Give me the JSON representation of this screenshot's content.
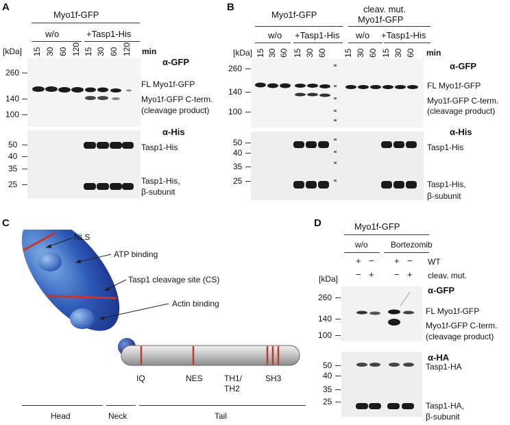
{
  "panels": {
    "A": {
      "label": "A",
      "construct": "Myo1f-GFP",
      "group_wo": "w/o",
      "group_tasp": "+Tasp1-His",
      "kda": "[kDa]",
      "min": "min",
      "times": [
        "15",
        "30",
        "60",
        "120",
        "15",
        "30",
        "60",
        "120"
      ],
      "antibody_top": "α-GFP",
      "antibody_bottom": "α-His",
      "markers_top": [
        "260",
        "140",
        "100"
      ],
      "markers_bottom": [
        "50",
        "40",
        "35",
        "25"
      ],
      "band_fl": "FL Myo1f-GFP",
      "band_cterm": "Myo1f-GFP C-term.",
      "band_cterm_sub": "(cleavage product)",
      "band_tasp": "Tasp1-His",
      "band_beta1": "Tasp1-His,",
      "band_beta2": "β-subunit"
    },
    "B": {
      "label": "B",
      "construct": "Myo1f-GFP",
      "construct2_l1": "cleav. mut.",
      "construct2_l2": "Myo1f-GFP",
      "group_wo": "w/o",
      "group_tasp": "+Tasp1-His",
      "group_wo2": "w/o",
      "group_tasp2": "+Tasp1-His",
      "kda": "[kDa]",
      "min": "min",
      "times": [
        "15",
        "30",
        "60",
        "15",
        "30",
        "60",
        "15",
        "30",
        "60",
        "15",
        "30",
        "60"
      ],
      "antibody_top": "α-GFP",
      "antibody_bottom": "α-His",
      "markers_top": [
        "260",
        "140",
        "100"
      ],
      "markers_bottom": [
        "50",
        "40",
        "35",
        "25"
      ],
      "band_fl": "FL Myo1f-GFP",
      "band_cterm": "Myo1f-GFP C-term.",
      "band_cterm_sub": "(cleavage product)",
      "band_tasp": "Tasp1-His",
      "band_beta1": "Tasp1-His,",
      "band_beta2": "β-subunit"
    },
    "C": {
      "label": "C",
      "callouts": [
        "NLS",
        "ATP  binding",
        "Tasp1 cleavage site (CS)",
        "Actin binding"
      ],
      "tail_sites": [
        "IQ",
        "NES",
        "TH1/",
        "TH2",
        "SH3"
      ],
      "domains": [
        "Head",
        "Neck",
        "Tail"
      ],
      "colors": {
        "head": "#2a4fb0",
        "neck": "#1f3f9a",
        "tail": "#b9b9b9",
        "site": "#c0392b"
      }
    },
    "D": {
      "label": "D",
      "construct": "Myo1f-GFP",
      "group_wo": "w/o",
      "group_bort": "Bortezomib",
      "wt_signs": [
        "+",
        "−",
        "+",
        "−"
      ],
      "mut_signs": [
        "−",
        "+",
        "−",
        "+"
      ],
      "wt": "WT",
      "mut": "cleav. mut.",
      "kda": "[kDa]",
      "antibody_top": "α-GFP",
      "antibody_bottom": "α-HA",
      "markers_top": [
        "260",
        "140",
        "100"
      ],
      "markers_bottom": [
        "50",
        "40",
        "35",
        "25"
      ],
      "band_fl": "FL Myo1f-GFP",
      "band_cterm": "Myo1f-GFP C-term.",
      "band_cterm_sub": "(cleavage product)",
      "band_tasp": "Tasp1-HA",
      "band_beta1": "Tasp1-HA,",
      "band_beta2": "β-subunit"
    }
  }
}
